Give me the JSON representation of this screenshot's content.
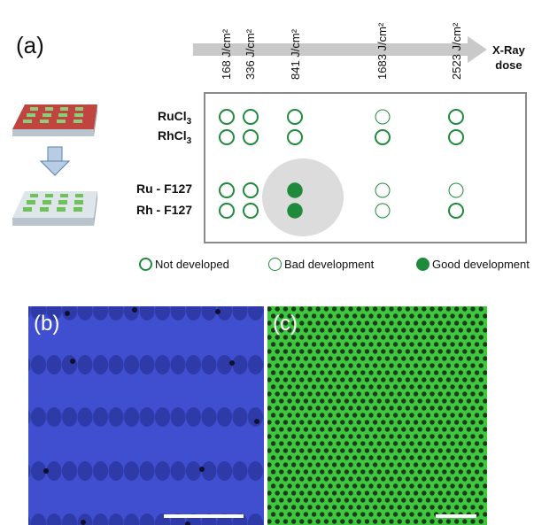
{
  "panel_a": {
    "label": "(a)",
    "doses": [
      "168 J/cm²",
      "336 J/cm²",
      "841 J/cm²",
      "1683 J/cm²",
      "2523 J/cm²"
    ],
    "axis_title_line1": "X-Ray",
    "axis_title_line2": "dose",
    "rows": [
      {
        "label": "RuCl",
        "sub": "3"
      },
      {
        "label": "RhCl",
        "sub": "3"
      },
      {
        "label": "Ru - F127",
        "sub": ""
      },
      {
        "label": "Rh - F127",
        "sub": ""
      }
    ],
    "states": [
      [
        "not",
        "not",
        "not",
        "bad",
        "not"
      ],
      [
        "not",
        "not",
        "not",
        "not",
        "not"
      ],
      [
        "not",
        "not",
        "good",
        "bad",
        "bad"
      ],
      [
        "not",
        "not",
        "good",
        "bad",
        "not"
      ]
    ],
    "legend": {
      "not_developed": "Not developed",
      "bad_development": "Bad development",
      "good_development": "Good development"
    },
    "colors": {
      "circle_green": "#1f8a3c",
      "arrow_gray": "#c9c9c9",
      "box_border": "#8a8a8a",
      "highlight_gray": "#dcdcdc",
      "substrate_red": "#c0443f",
      "pad_green": "#8ccf7a"
    }
  },
  "panel_b": {
    "label": "(b)",
    "background_color": "#3f4fd0"
  },
  "panel_c": {
    "label": "(c)",
    "background_color": "#3ec83e"
  }
}
